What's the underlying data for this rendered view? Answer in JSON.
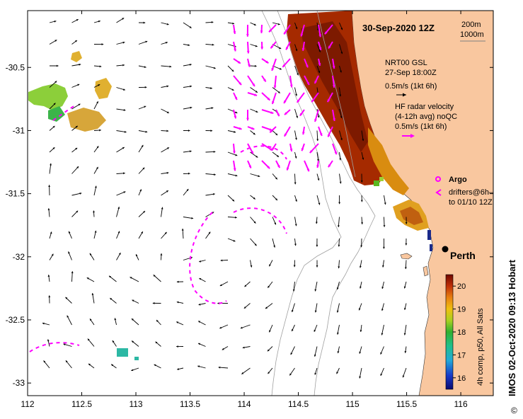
{
  "title": "30-Sep-2020 12Z",
  "scale": {
    "upper": "200m",
    "lower": "1000m"
  },
  "gsl": {
    "name": "NRT00 GSL",
    "time": "27-Sep 18:00Z",
    "ref_vector": "0.5m/s (1kt 6h)"
  },
  "hf_radar": {
    "line1": "HF radar velocity",
    "line2": "(4-12h avg) noQC",
    "ref_vector": "0.5m/s (1kt 6h)"
  },
  "argo": {
    "label": "Argo"
  },
  "drifters": {
    "line1": "drifters@6h–",
    "line2": "to 01/10 12Z"
  },
  "city": {
    "name": "Perth",
    "lon": 115.86,
    "lat": -31.95
  },
  "colorbar": {
    "title": "4h comp, p50, All Sats",
    "min": 15.5,
    "max": 20.5,
    "ticks": [
      16,
      17,
      18,
      19,
      20
    ],
    "tick_labels": [
      "16",
      "17",
      "18",
      "19",
      "20"
    ]
  },
  "credit": "IMOS 02-Oct-2020 09:13 Hobart",
  "axes": {
    "x_ticks": [
      112,
      112.5,
      113,
      113.5,
      114,
      114.5,
      115,
      115.5,
      116
    ],
    "x_labels": [
      "112",
      "112.5",
      "113",
      "113.5",
      "114",
      "114.5",
      "115",
      "115.5",
      "116"
    ],
    "y_ticks": [
      -30.5,
      -31,
      -31.5,
      -32,
      -32.5,
      -33
    ],
    "y_labels": [
      "-30.5",
      "-31",
      "-31.5",
      "-32",
      "-32.5",
      "-33"
    ],
    "lon_range": [
      112,
      116.3
    ],
    "lat_range": [
      -33.1,
      -30.05
    ]
  },
  "colors": {
    "land": "#f9c79f",
    "drifter": "#ff00ff",
    "vector": "#000000",
    "contour": "#a0a0a0"
  }
}
